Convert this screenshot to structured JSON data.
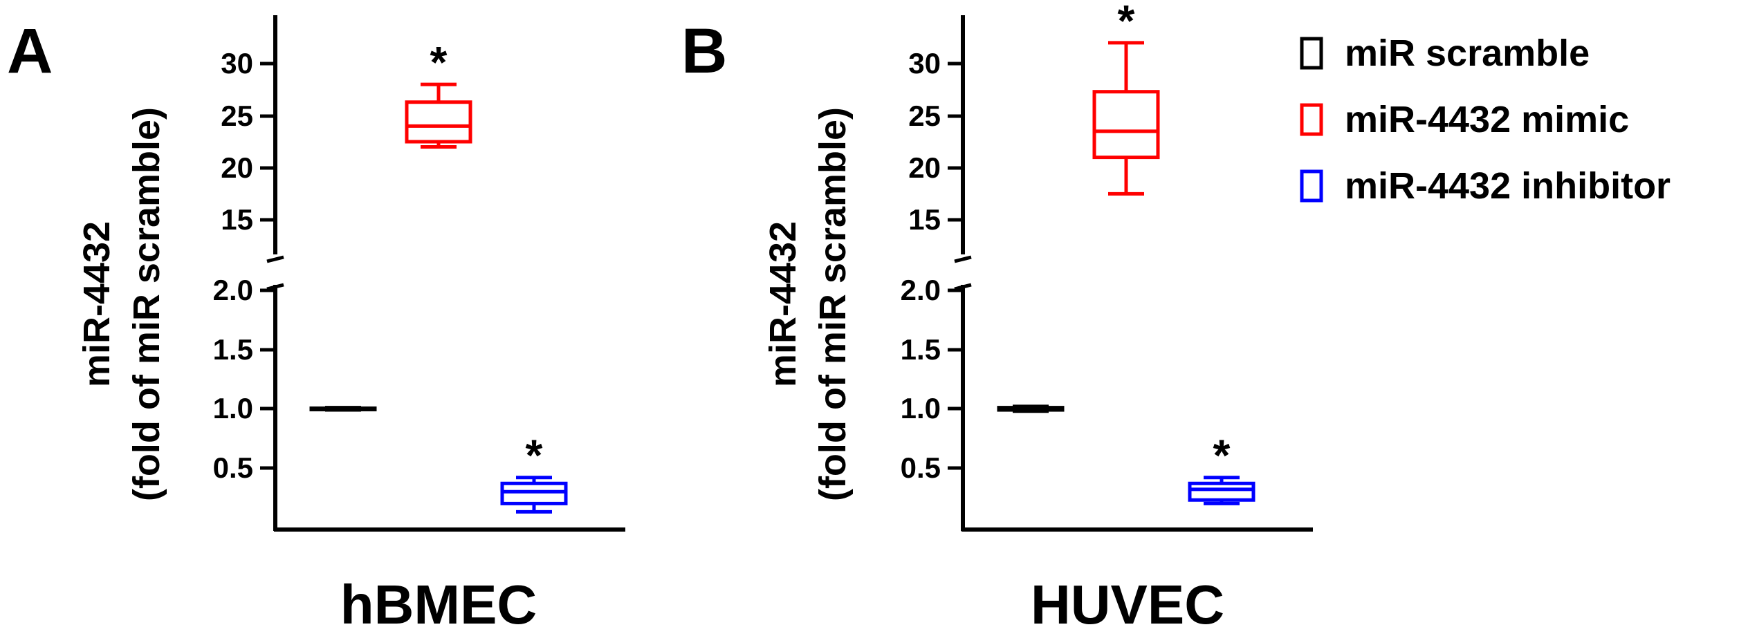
{
  "legend": [
    {
      "label": "miR scramble",
      "color": "#000000"
    },
    {
      "label": "miR-4432 mimic",
      "color": "#ff0000"
    },
    {
      "label": "miR-4432 inhibitor",
      "color": "#0000ff"
    }
  ],
  "chart_data": [
    {
      "type": "boxplot",
      "panel_label": "A",
      "xlabel": "hBMEC",
      "ylabel_line1": "miR-4432",
      "ylabel_line2": "(fold of miR scramble)",
      "y_axis_break": true,
      "upper_segment": {
        "ylim": [
          13,
          33
        ],
        "ticks": [
          15,
          20,
          25,
          30
        ],
        "tick_labels": [
          "15",
          "20",
          "25",
          "30"
        ]
      },
      "lower_segment": {
        "ylim": [
          0,
          2
        ],
        "ticks": [
          0.5,
          1.0,
          1.5,
          2.0
        ],
        "tick_labels": [
          "0.5",
          "1.0",
          "1.5",
          "2.0"
        ]
      },
      "series": [
        {
          "name": "miR scramble",
          "color": "#000000",
          "min": 0.99,
          "q1": 0.995,
          "median": 1.0,
          "q3": 1.005,
          "max": 1.01,
          "significant": false
        },
        {
          "name": "miR-4432 mimic",
          "color": "#ff0000",
          "min": 22.0,
          "q1": 22.5,
          "median": 24.0,
          "q3": 26.3,
          "max": 28.0,
          "significant": true
        },
        {
          "name": "miR-4432 inhibitor",
          "color": "#0000ff",
          "min": 0.13,
          "q1": 0.2,
          "median": 0.3,
          "q3": 0.37,
          "max": 0.42,
          "significant": true
        }
      ],
      "significance_marker": "*"
    },
    {
      "type": "boxplot",
      "panel_label": "B",
      "xlabel": "HUVEC",
      "ylabel_line1": "miR-4432",
      "ylabel_line2": "(fold of miR scramble)",
      "y_axis_break": true,
      "upper_segment": {
        "ylim": [
          13,
          33
        ],
        "ticks": [
          15,
          20,
          25,
          30
        ],
        "tick_labels": [
          "15",
          "20",
          "25",
          "30"
        ]
      },
      "lower_segment": {
        "ylim": [
          0,
          2
        ],
        "ticks": [
          0.5,
          1.0,
          1.5,
          2.0
        ],
        "tick_labels": [
          "0.5",
          "1.0",
          "1.5",
          "2.0"
        ]
      },
      "series": [
        {
          "name": "miR scramble",
          "color": "#000000",
          "min": 0.98,
          "q1": 0.99,
          "median": 1.0,
          "q3": 1.01,
          "max": 1.02,
          "significant": false
        },
        {
          "name": "miR-4432 mimic",
          "color": "#ff0000",
          "min": 17.5,
          "q1": 21.0,
          "median": 23.5,
          "q3": 27.3,
          "max": 32.0,
          "significant": true
        },
        {
          "name": "miR-4432 inhibitor",
          "color": "#0000ff",
          "min": 0.2,
          "q1": 0.23,
          "median": 0.32,
          "q3": 0.37,
          "max": 0.42,
          "significant": true
        }
      ],
      "significance_marker": "*"
    }
  ]
}
